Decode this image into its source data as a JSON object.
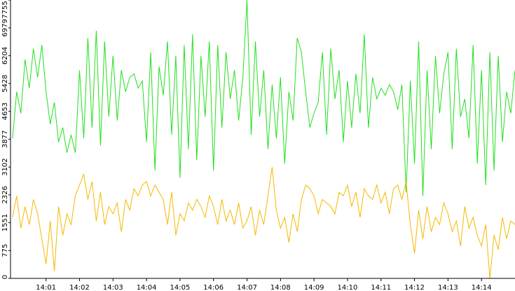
{
  "chart_data": {
    "type": "line",
    "x": [
      0,
      0.125,
      0.25,
      0.375,
      0.5,
      0.625,
      0.75,
      0.875,
      1,
      1.125,
      1.25,
      1.375,
      1.5,
      1.625,
      1.75,
      1.875,
      2,
      2.125,
      2.25,
      2.375,
      2.5,
      2.625,
      2.75,
      2.875,
      3,
      3.125,
      3.25,
      3.375,
      3.5,
      3.625,
      3.75,
      3.875,
      4,
      4.125,
      4.25,
      4.375,
      4.5,
      4.625,
      4.75,
      4.875,
      5,
      5.125,
      5.25,
      5.375,
      5.5,
      5.625,
      5.75,
      5.875,
      6,
      6.125,
      6.25,
      6.375,
      6.5,
      6.625,
      6.75,
      6.875,
      7,
      7.125,
      7.25,
      7.375,
      7.5,
      7.625,
      7.75,
      7.875,
      8,
      8.125,
      8.25,
      8.375,
      8.5,
      8.625,
      8.75,
      8.875,
      9,
      9.125,
      9.25,
      9.375,
      9.5,
      9.625,
      9.75,
      9.875,
      10,
      10.125,
      10.25,
      10.375,
      10.5,
      10.625,
      10.75,
      10.875,
      11,
      11.125,
      11.25,
      11.375,
      11.5,
      11.625,
      11.75,
      11.875,
      12,
      12.125,
      12.25,
      12.375,
      12.5,
      12.625,
      12.75,
      12.875,
      13,
      13.125,
      13.25,
      13.375,
      13.5,
      13.625,
      13.75,
      13.875,
      14,
      14.125,
      14.25,
      14.375,
      14.5,
      14.625,
      14.75,
      14.875,
      15
    ],
    "series": [
      {
        "color": "#22e01e",
        "values": [
          3900,
          5200,
          4600,
          6100,
          5300,
          6400,
          5600,
          6500,
          5200,
          4300,
          4900,
          3800,
          4200,
          3500,
          4000,
          3500,
          5800,
          3900,
          6700,
          4200,
          6900,
          3700,
          6600,
          4500,
          6200,
          4400,
          5800,
          5200,
          5600,
          5700,
          5300,
          5500,
          3800,
          6300,
          3000,
          5900,
          5100,
          6600,
          4000,
          6200,
          2800,
          6500,
          3600,
          6800,
          3300,
          6200,
          4500,
          6600,
          3000,
          6500,
          4200,
          6300,
          5000,
          5800,
          4400,
          5600,
          7755,
          4000,
          6600,
          4500,
          5800,
          3600,
          5400,
          3900,
          5600,
          3200,
          5200,
          4400,
          6700,
          6300,
          5200,
          4200,
          4600,
          4900,
          6300,
          4000,
          6400,
          5000,
          5800,
          3800,
          5500,
          4200,
          5700,
          4600,
          6800,
          4200,
          5600,
          5000,
          5300,
          5100,
          5400,
          5200,
          4700,
          5400,
          2400,
          5500,
          3200,
          6600,
          2300,
          5800,
          3600,
          6200,
          4600,
          5700,
          6300,
          3600,
          6400,
          4500,
          5000,
          3900,
          6500,
          3200,
          5800,
          2600,
          6300,
          3000,
          6200,
          3800,
          5200,
          4600,
          5800
        ]
      },
      {
        "color": "#f5b800",
        "values": [
          1700,
          2300,
          1400,
          2000,
          1500,
          2200,
          1800,
          1100,
          400,
          1600,
          200,
          2000,
          1200,
          1800,
          1500,
          2300,
          2600,
          2900,
          2200,
          2700,
          1600,
          2400,
          1500,
          2000,
          1800,
          2100,
          1300,
          2200,
          1900,
          2500,
          2300,
          2600,
          2700,
          2300,
          2600,
          2400,
          2200,
          1500,
          2400,
          1200,
          1800,
          1600,
          2100,
          1900,
          2200,
          2000,
          1700,
          2300,
          2000,
          1500,
          2200,
          1600,
          1900,
          1500,
          2100,
          1400,
          1600,
          2000,
          1200,
          1900,
          1500,
          2300,
          3100,
          1900,
          1400,
          1700,
          1000,
          1800,
          1300,
          2200,
          2600,
          2500,
          2300,
          1800,
          2200,
          2100,
          2000,
          1800,
          2400,
          2300,
          2600,
          2000,
          2400,
          1700,
          2500,
          2300,
          2200,
          2600,
          2100,
          2400,
          1800,
          2500,
          2600,
          2200,
          2700,
          1500,
          700,
          1900,
          1100,
          2000,
          1300,
          1700,
          1500,
          2100,
          1800,
          1300,
          1600,
          900,
          2000,
          1400,
          1700,
          1200,
          900,
          1500,
          0,
          1200,
          800,
          1700,
          1100,
          1600,
          1500
        ]
      }
    ],
    "xlim": [
      -0.06,
      15
    ],
    "xticks": [
      {
        "value": 1,
        "label": "14:01"
      },
      {
        "value": 2,
        "label": "14:02"
      },
      {
        "value": 3,
        "label": "14:03"
      },
      {
        "value": 4,
        "label": "14:04"
      },
      {
        "value": 5,
        "label": "14:05"
      },
      {
        "value": 6,
        "label": "14:06"
      },
      {
        "value": 7,
        "label": "14:07"
      },
      {
        "value": 8,
        "label": "14:08"
      },
      {
        "value": 9,
        "label": "14:09"
      },
      {
        "value": 10,
        "label": "14:10"
      },
      {
        "value": 11,
        "label": "14:11"
      },
      {
        "value": 12,
        "label": "14:12"
      },
      {
        "value": 13,
        "label": "14:13"
      },
      {
        "value": 14,
        "label": "14:14"
      }
    ],
    "ylim": [
      0,
      7755
    ],
    "yticks": [
      0,
      775,
      1551,
      2326,
      3102,
      3877,
      4653,
      5428,
      6204,
      6979,
      7755
    ]
  }
}
